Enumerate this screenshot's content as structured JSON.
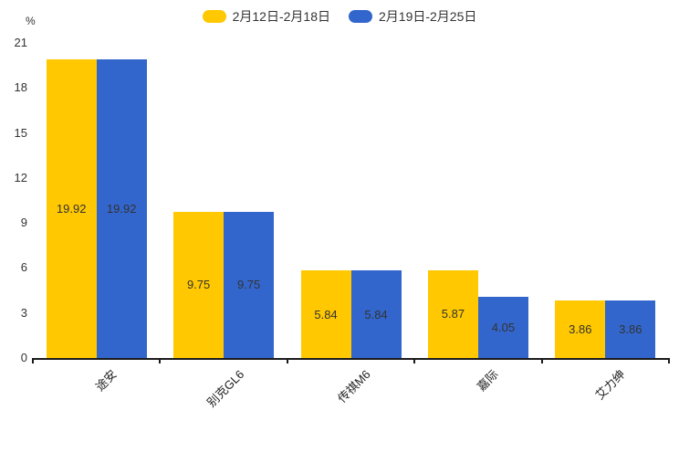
{
  "chart_data": {
    "type": "bar",
    "title": "",
    "unit_label": "%",
    "categories": [
      "途安",
      "别克GL6",
      "传祺M6",
      "嘉际",
      "艾力绅"
    ],
    "series": [
      {
        "name": "2月12日-2月18日",
        "color": "#ffc800",
        "values": [
          19.92,
          9.75,
          5.84,
          5.87,
          3.86
        ]
      },
      {
        "name": "2月19日-2月25日",
        "color": "#3366cc",
        "values": [
          19.92,
          9.75,
          5.84,
          4.05,
          3.86
        ]
      }
    ],
    "ylim": [
      0,
      21
    ],
    "yticks": [
      0,
      3,
      6,
      9,
      12,
      15,
      18,
      21
    ],
    "legend_position": "top",
    "grid": false,
    "value_labels": true,
    "value_label_color": "#333333",
    "axis_color": "#1a1a1a",
    "background_color": "#ffffff"
  }
}
